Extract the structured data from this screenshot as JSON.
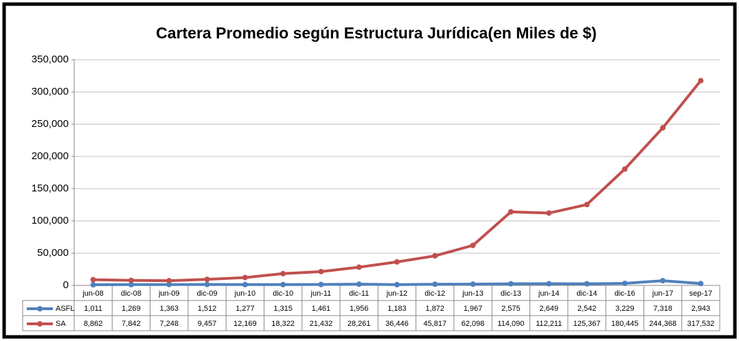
{
  "chart_data": {
    "type": "line",
    "title": "Cartera Promedio según Estructura Jurídica(en Miles de $)",
    "categories": [
      "jun-08",
      "dic-08",
      "jun-09",
      "dic-09",
      "jun-10",
      "dic-10",
      "jun-11",
      "dic-11",
      "jun-12",
      "dic-12",
      "jun-13",
      "dic-13",
      "jun-14",
      "dic-14",
      "dic-16",
      "jun-17",
      "sep-17"
    ],
    "series": [
      {
        "name": "ASFL",
        "color": "#4f81bd",
        "values": [
          1011,
          1269,
          1363,
          1512,
          1277,
          1315,
          1461,
          1956,
          1183,
          1872,
          1967,
          2575,
          2649,
          2542,
          3229,
          7318,
          2943
        ],
        "value_labels": [
          "1,011",
          "1,269",
          "1,363",
          "1,512",
          "1,277",
          "1,315",
          "1,461",
          "1,956",
          "1,183",
          "1,872",
          "1,967",
          "2,575",
          "2,649",
          "2,542",
          "3,229",
          "7,318",
          "2,943"
        ]
      },
      {
        "name": "SA",
        "color": "#c0504d",
        "values": [
          8862,
          7842,
          7248,
          9457,
          12169,
          18322,
          21432,
          28261,
          36446,
          45817,
          62098,
          114090,
          112211,
          125367,
          180445,
          244368,
          317532
        ],
        "value_labels": [
          "8,862",
          "7,842",
          "7,248",
          "9,457",
          "12,169",
          "18,322",
          "21,432",
          "28,261",
          "36,446",
          "45,817",
          "62,098",
          "114,090",
          "112,211",
          "125,367",
          "180,445",
          "244,368",
          "317,532"
        ]
      }
    ],
    "ylim": [
      0,
      350000
    ],
    "yticks": [
      0,
      {
        "value": 50000,
        "label": "50,000"
      },
      {
        "value": 100000,
        "label": "100,000"
      },
      {
        "value": 150000,
        "label": "150,000"
      },
      {
        "value": 200000,
        "label": "200,000"
      },
      {
        "value": 250000,
        "label": "250,000"
      },
      {
        "value": 300000,
        "label": "300,000"
      },
      {
        "value": 350000,
        "label": "350,000"
      }
    ],
    "grid": true
  }
}
